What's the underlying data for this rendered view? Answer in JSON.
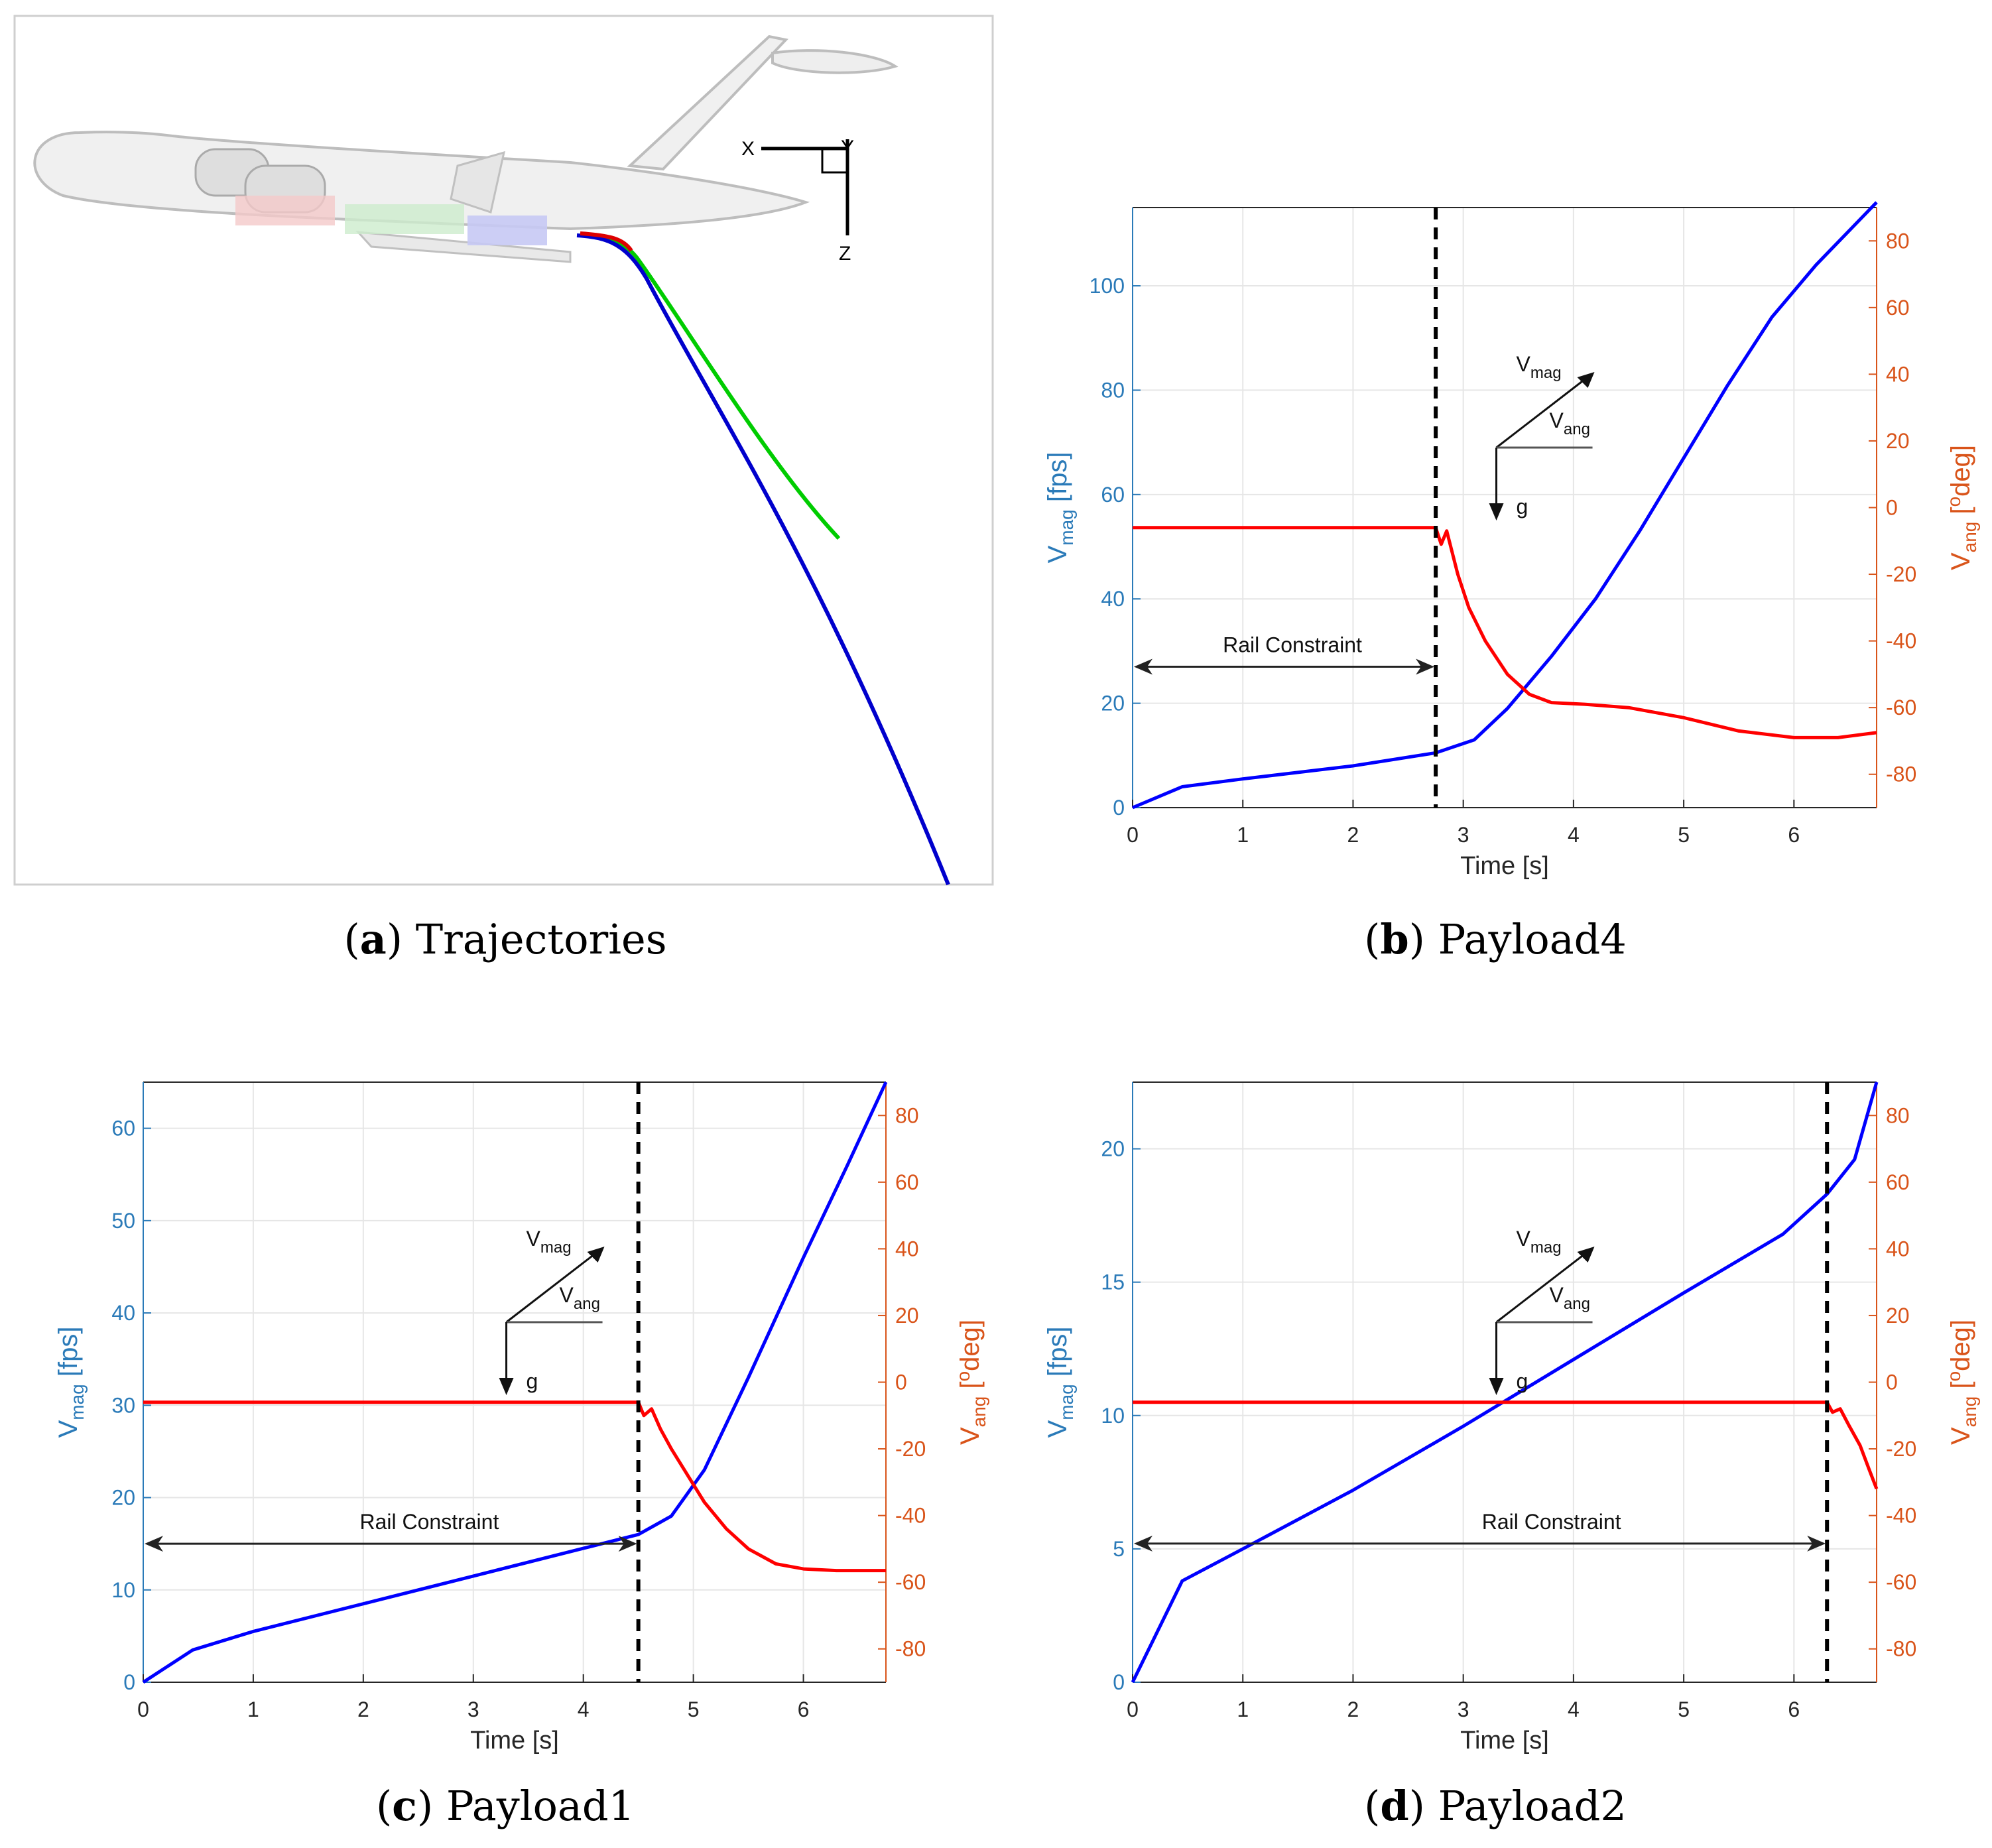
{
  "captions": {
    "a": {
      "letter": "a",
      "text": "Trajectories"
    },
    "b": {
      "letter": "b",
      "text": "Payload4"
    },
    "c": {
      "letter": "c",
      "text": "Payload1"
    },
    "d": {
      "letter": "d",
      "text": "Payload2"
    }
  },
  "trajectory_panel": {
    "axis_labels": {
      "x": "X",
      "y": "Y",
      "z": "Z"
    },
    "trajectory_colors": {
      "payload1": "#0000cc",
      "payload2": "#00cc00",
      "payload4": "#dd0000"
    }
  },
  "colors": {
    "vmag": "#0000ff",
    "vang": "#ff0000",
    "left_axis": "#2a7ab8",
    "right_axis": "#d9541a",
    "grid": "#e6e6e6",
    "rail": "#000000"
  },
  "annotation": {
    "vmag_label": "V",
    "vmag_sub": "mag",
    "vang_label": "V",
    "vang_sub": "ang",
    "g_label": "g",
    "rail_label": "Rail Constraint"
  },
  "axis_text": {
    "xlabel": "Time [s]",
    "ylabel_main": "V",
    "ylabel_sub": "mag",
    "ylabel_unit": " [fps]",
    "y2label_main": "V",
    "y2label_sub": "ang",
    "y2label_pre": " [",
    "y2label_sup": "o",
    "y2label_post": "deg]"
  },
  "chart_data": [
    {
      "id": "b",
      "type": "line",
      "title": "Payload4",
      "xlabel": "Time [s]",
      "ylabel": "Vmag [fps]",
      "y2label": "Vang [odeg]",
      "xlim": [
        0,
        6.75
      ],
      "ylim": [
        0,
        115
      ],
      "y2lim": [
        -90,
        90
      ],
      "xticks": [
        0,
        1,
        2,
        3,
        4,
        5,
        6
      ],
      "yticks": [
        0,
        20,
        40,
        60,
        80,
        100
      ],
      "y2ticks": [
        -80,
        -60,
        -40,
        -20,
        0,
        20,
        40,
        60,
        80
      ],
      "rail_time": 2.75,
      "rail_label_time": 1.45,
      "arrow_y": 27,
      "legend_anchor": [
        3.3,
        69
      ],
      "series": [
        {
          "name": "Vmag",
          "axis": "left",
          "x": [
            0,
            0.45,
            1.0,
            2.0,
            2.75,
            3.1,
            3.4,
            3.8,
            4.2,
            4.6,
            5.0,
            5.4,
            5.8,
            6.2,
            6.75
          ],
          "values": [
            0,
            4,
            5.5,
            8,
            10.5,
            13,
            19,
            29,
            40,
            53,
            67,
            81,
            94,
            104,
            116
          ]
        },
        {
          "name": "Vang",
          "axis": "right",
          "x": [
            0,
            2.75,
            2.8,
            2.85,
            2.95,
            3.05,
            3.2,
            3.4,
            3.6,
            3.8,
            4.1,
            4.5,
            5.0,
            5.5,
            6.0,
            6.4,
            6.75
          ],
          "values": [
            -6,
            -6,
            -11,
            -7,
            -20,
            -30,
            -40,
            -50,
            -56,
            -58.5,
            -59,
            -60,
            -63,
            -67,
            -69,
            -69,
            -67.5
          ]
        }
      ]
    },
    {
      "id": "c",
      "type": "line",
      "title": "Payload1",
      "xlabel": "Time [s]",
      "ylabel": "Vmag [fps]",
      "y2label": "Vang [odeg]",
      "xlim": [
        0,
        6.75
      ],
      "ylim": [
        0,
        65
      ],
      "y2lim": [
        -90,
        90
      ],
      "xticks": [
        0,
        1,
        2,
        3,
        4,
        5,
        6
      ],
      "yticks": [
        0,
        10,
        20,
        30,
        40,
        50,
        60
      ],
      "y2ticks": [
        -80,
        -60,
        -40,
        -20,
        0,
        20,
        40,
        60,
        80
      ],
      "rail_time": 4.5,
      "rail_label_time": 2.6,
      "arrow_y": 15,
      "legend_anchor": [
        3.3,
        39
      ],
      "series": [
        {
          "name": "Vmag",
          "axis": "left",
          "x": [
            0,
            0.45,
            1.0,
            2.0,
            3.0,
            4.0,
            4.5,
            4.8,
            5.1,
            5.5,
            6.0,
            6.4,
            6.75
          ],
          "values": [
            0,
            3.5,
            5.5,
            8.5,
            11.5,
            14.5,
            16,
            18,
            23,
            33,
            46,
            56,
            65
          ]
        },
        {
          "name": "Vang",
          "axis": "right",
          "x": [
            0,
            4.5,
            4.55,
            4.62,
            4.7,
            4.8,
            4.95,
            5.1,
            5.3,
            5.5,
            5.75,
            6.0,
            6.3,
            6.75
          ],
          "values": [
            -6,
            -6,
            -10,
            -8,
            -14,
            -20,
            -28,
            -36,
            -44,
            -50,
            -54.5,
            -56,
            -56.5,
            -56.5
          ]
        }
      ]
    },
    {
      "id": "d",
      "type": "line",
      "title": "Payload2",
      "xlabel": "Time [s]",
      "ylabel": "Vmag [fps]",
      "y2label": "Vang [odeg]",
      "xlim": [
        0,
        6.75
      ],
      "ylim": [
        0,
        22.5
      ],
      "y2lim": [
        -90,
        90
      ],
      "xticks": [
        0,
        1,
        2,
        3,
        4,
        5,
        6
      ],
      "yticks": [
        0,
        5,
        10,
        15,
        20
      ],
      "y2ticks": [
        -80,
        -60,
        -40,
        -20,
        0,
        20,
        40,
        60,
        80
      ],
      "rail_time": 6.3,
      "rail_label_time": 3.8,
      "arrow_y": 5.2,
      "legend_anchor": [
        3.3,
        13.5
      ],
      "series": [
        {
          "name": "Vmag",
          "axis": "left",
          "x": [
            0,
            0.45,
            1.0,
            2.0,
            3.0,
            4.0,
            5.0,
            5.9,
            6.3,
            6.55,
            6.75
          ],
          "values": [
            0,
            3.8,
            5.0,
            7.2,
            9.6,
            12.1,
            14.6,
            16.8,
            18.3,
            19.6,
            22.5
          ]
        },
        {
          "name": "Vang",
          "axis": "right",
          "x": [
            0,
            6.3,
            6.35,
            6.42,
            6.5,
            6.6,
            6.68,
            6.75
          ],
          "values": [
            -6,
            -6,
            -9,
            -8,
            -13,
            -19,
            -26,
            -32
          ]
        }
      ]
    }
  ]
}
